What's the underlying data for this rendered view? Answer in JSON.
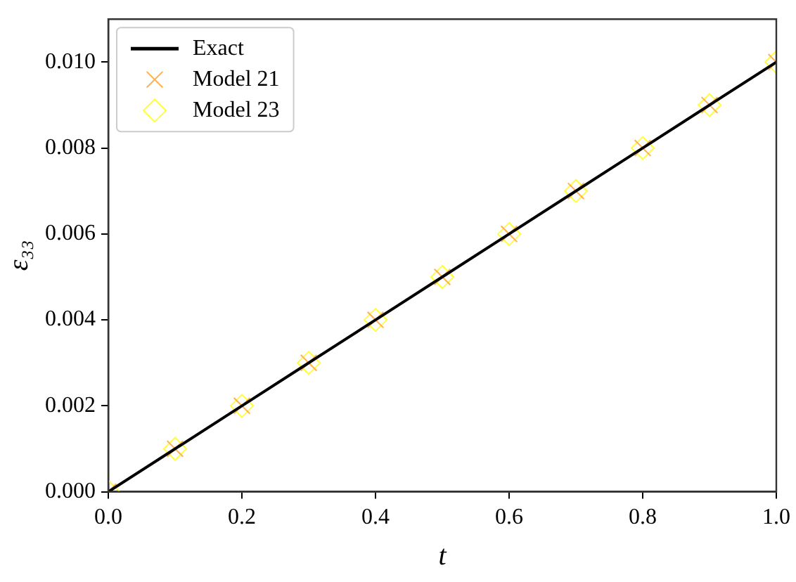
{
  "chart_data": {
    "type": "line",
    "xlabel": "t",
    "ylabel": "ε₃₃",
    "x": [
      0,
      0.1,
      0.2,
      0.3,
      0.4,
      0.5,
      0.6,
      0.7,
      0.8,
      0.9,
      1.0
    ],
    "series": [
      {
        "name": "Exact",
        "type": "line",
        "color": "#000000",
        "marker": "none",
        "line_style": "solid",
        "values": [
          0,
          0.001,
          0.002,
          0.003,
          0.004,
          0.005,
          0.006,
          0.007,
          0.008,
          0.009,
          0.01
        ]
      },
      {
        "name": "Model 21",
        "type": "scatter",
        "color": "#ffb050",
        "marker": "cross",
        "values": [
          0,
          0.001,
          0.002,
          0.003,
          0.004,
          0.005,
          0.006,
          0.007,
          0.008,
          0.009,
          0.01
        ]
      },
      {
        "name": "Model 23",
        "type": "scatter",
        "color": "#ffff40",
        "marker": "diamond",
        "values": [
          0,
          0.001,
          0.002,
          0.003,
          0.004,
          0.005,
          0.006,
          0.007,
          0.008,
          0.009,
          0.01
        ]
      }
    ],
    "xlim": [
      0,
      1
    ],
    "ylim": [
      0,
      0.011
    ],
    "xticks": [
      {
        "value": 0,
        "label": "0.0"
      },
      {
        "value": 0.2,
        "label": "0.2"
      },
      {
        "value": 0.4,
        "label": "0.4"
      },
      {
        "value": 0.6,
        "label": "0.6"
      },
      {
        "value": 0.8,
        "label": "0.8"
      },
      {
        "value": 1,
        "label": "1.0"
      }
    ],
    "yticks": [
      {
        "value": 0,
        "label": "0.000"
      },
      {
        "value": 0.002,
        "label": "0.002"
      },
      {
        "value": 0.004,
        "label": "0.004"
      },
      {
        "value": 0.006,
        "label": "0.006"
      },
      {
        "value": 0.008,
        "label": "0.008"
      },
      {
        "value": 0.01,
        "label": "0.010"
      }
    ],
    "grid": false,
    "legend": "top left"
  }
}
